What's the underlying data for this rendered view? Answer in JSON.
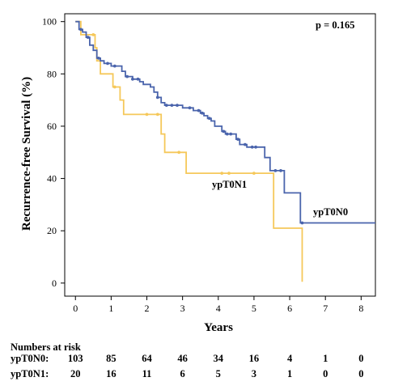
{
  "chart_data": {
    "type": "line",
    "chart_kind": "kaplan-meier step plot with censor marks",
    "xlabel": "Years",
    "ylabel": "Recurrence-free Survival (%)",
    "xlim": [
      -0.3,
      8.4
    ],
    "ylim": [
      -5,
      103
    ],
    "x_ticks": [
      "0",
      "1",
      "2",
      "3",
      "4",
      "5",
      "6",
      "7",
      "8"
    ],
    "y_ticks": [
      "0",
      "20",
      "40",
      "60",
      "80",
      "100"
    ],
    "annotation": "p = 0.165",
    "grid": false,
    "series": [
      {
        "name": "ypT0N0",
        "color": "#4a64ac",
        "steps": [
          [
            0,
            100
          ],
          [
            0.1,
            97
          ],
          [
            0.2,
            96
          ],
          [
            0.3,
            94
          ],
          [
            0.4,
            91
          ],
          [
            0.5,
            89
          ],
          [
            0.6,
            86
          ],
          [
            0.7,
            85
          ],
          [
            0.8,
            84
          ],
          [
            1.0,
            83
          ],
          [
            1.3,
            81
          ],
          [
            1.4,
            79
          ],
          [
            1.6,
            78
          ],
          [
            1.8,
            77
          ],
          [
            1.9,
            76
          ],
          [
            2.1,
            75
          ],
          [
            2.2,
            73
          ],
          [
            2.3,
            71
          ],
          [
            2.4,
            69
          ],
          [
            2.5,
            68
          ],
          [
            3.0,
            67
          ],
          [
            3.3,
            66
          ],
          [
            3.5,
            65
          ],
          [
            3.6,
            64
          ],
          [
            3.7,
            63
          ],
          [
            3.8,
            62
          ],
          [
            3.9,
            60
          ],
          [
            4.1,
            58
          ],
          [
            4.2,
            57
          ],
          [
            4.5,
            55
          ],
          [
            4.6,
            53
          ],
          [
            4.8,
            52
          ],
          [
            5.3,
            48
          ],
          [
            5.45,
            43
          ],
          [
            5.85,
            34.5
          ],
          [
            6.3,
            23
          ],
          [
            8.4,
            23
          ]
        ],
        "censor_x": [
          0.15,
          0.35,
          0.65,
          0.9,
          1.1,
          1.45,
          1.6,
          1.75,
          2.3,
          2.55,
          2.7,
          2.85,
          3.2,
          3.45,
          3.55,
          3.75,
          4.15,
          4.25,
          4.35,
          4.55,
          4.75,
          4.95,
          5.05,
          5.6,
          5.75,
          6.35
        ],
        "label": "ypT0N0"
      },
      {
        "name": "ypT0N1",
        "color": "#f5c85a",
        "steps": [
          [
            0,
            100
          ],
          [
            0.15,
            95
          ],
          [
            0.55,
            90
          ],
          [
            0.6,
            85
          ],
          [
            0.7,
            80
          ],
          [
            1.05,
            75
          ],
          [
            1.25,
            70
          ],
          [
            1.35,
            64.5
          ],
          [
            2.4,
            57
          ],
          [
            2.5,
            50
          ],
          [
            3.1,
            42
          ],
          [
            5.55,
            21
          ],
          [
            6.35,
            0.5
          ]
        ],
        "censor_x": [
          0.5,
          1.1,
          2.0,
          2.3,
          2.9,
          4.1,
          4.3,
          5.0
        ],
        "label": "ypT0N1"
      }
    ]
  },
  "risk_table": {
    "title": "Numbers at risk",
    "rows": [
      {
        "label": "ypT0N0:",
        "values": [
          "103",
          "85",
          "64",
          "46",
          "34",
          "16",
          "4",
          "1",
          "0"
        ]
      },
      {
        "label": "ypT0N1:",
        "values": [
          "20",
          "16",
          "11",
          "6",
          "5",
          "3",
          "1",
          "0",
          "0"
        ]
      }
    ]
  }
}
